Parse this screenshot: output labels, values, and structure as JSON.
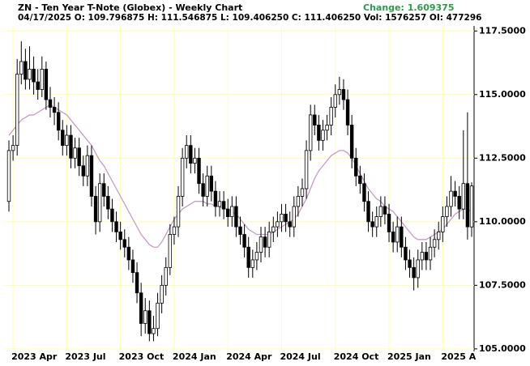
{
  "header": {
    "title": "ZN - Ten Year T-Note (Globex) - Weekly Chart",
    "change": "Change: 1.609375",
    "quote": "04/17/2025 O: 109.796875 H: 111.546875 L: 109.406250 C: 111.406250 Vol: 1576257 OI: 477296"
  },
  "chart_data": {
    "type": "candlestick",
    "categories": [
      null,
      "2023 Apr",
      null,
      null,
      null,
      null,
      null,
      null,
      null,
      null,
      null,
      null,
      null,
      null,
      "2023 Jul",
      null,
      null,
      null,
      null,
      null,
      null,
      null,
      null,
      null,
      null,
      null,
      null,
      "2023 Oct",
      null,
      null,
      null,
      null,
      null,
      null,
      null,
      null,
      null,
      null,
      null,
      null,
      "2024 Jan",
      null,
      null,
      null,
      null,
      null,
      null,
      null,
      null,
      null,
      null,
      null,
      null,
      "2024 Apr",
      null,
      null,
      null,
      null,
      null,
      null,
      null,
      null,
      null,
      null,
      null,
      null,
      "2024 Jul",
      null,
      null,
      null,
      null,
      null,
      null,
      null,
      null,
      null,
      null,
      null,
      null,
      "2024 Oct",
      null,
      null,
      null,
      null,
      null,
      null,
      null,
      null,
      null,
      null,
      null,
      null,
      "2025 Jan",
      null,
      null,
      null,
      null,
      null,
      null,
      null,
      null,
      null,
      null,
      null,
      null,
      "2025 A",
      null,
      null,
      null,
      null,
      null,
      null,
      null
    ],
    "open": [
      110.8,
      112.8,
      113.0,
      115.8,
      116.3,
      115.6,
      116.0,
      115.5,
      115.2,
      116.0,
      114.8,
      114.5,
      114.3,
      113.6,
      113.0,
      113.4,
      112.5,
      112.9,
      112.2,
      111.8,
      112.6,
      111.0,
      110.0,
      111.5,
      111.0,
      110.5,
      110.0,
      109.6,
      109.3,
      109.0,
      108.5,
      108.0,
      107.2,
      106.0,
      106.5,
      105.6,
      105.8,
      106.8,
      107.5,
      108.2,
      109.5,
      109.8,
      111.0,
      112.5,
      113.0,
      112.3,
      112.5,
      111.5,
      111.0,
      111.8,
      111.2,
      110.6,
      110.8,
      110.5,
      110.2,
      110.6,
      109.8,
      109.5,
      109.0,
      108.2,
      108.5,
      108.8,
      109.4,
      109.0,
      109.6,
      109.8,
      110.0,
      110.3,
      110.0,
      109.8,
      110.6,
      111.0,
      111.3,
      112.8,
      114.2,
      113.8,
      113.2,
      113.6,
      113.8,
      114.5,
      115.0,
      115.2,
      114.8,
      113.8,
      112.5,
      111.8,
      111.5,
      110.8,
      110.0,
      109.8,
      110.2,
      110.6,
      110.3,
      109.6,
      109.2,
      109.8,
      109.0,
      108.5,
      108.2,
      107.8,
      108.5,
      108.8,
      108.5,
      109.0,
      109.3,
      109.6,
      110.2,
      110.6,
      111.2,
      111.0,
      110.5,
      111.5,
      109.796875
    ],
    "high": [
      113.2,
      113.4,
      116.4,
      117.1,
      116.8,
      116.9,
      116.5,
      116.0,
      116.5,
      116.3,
      115.3,
      114.9,
      114.7,
      114.0,
      113.8,
      113.8,
      113.3,
      113.3,
      112.6,
      113.0,
      113.0,
      111.4,
      111.9,
      111.9,
      111.4,
      110.9,
      110.4,
      110.0,
      109.7,
      109.4,
      108.9,
      108.4,
      107.6,
      107.0,
      106.9,
      106.3,
      107.2,
      107.9,
      108.6,
      109.9,
      110.2,
      111.4,
      112.9,
      113.4,
      113.4,
      112.9,
      112.9,
      111.9,
      112.2,
      112.2,
      111.6,
      111.2,
      111.2,
      110.9,
      111.0,
      111.0,
      110.2,
      109.9,
      109.4,
      108.9,
      109.2,
      109.8,
      109.8,
      110.0,
      110.2,
      110.4,
      110.7,
      110.7,
      110.4,
      111.0,
      111.4,
      111.7,
      113.2,
      114.6,
      114.6,
      114.2,
      114.0,
      114.2,
      114.9,
      115.4,
      115.7,
      115.6,
      115.2,
      114.2,
      112.9,
      112.2,
      111.9,
      111.2,
      110.4,
      110.6,
      111.0,
      111.0,
      110.7,
      110.0,
      110.2,
      110.2,
      109.4,
      108.9,
      108.6,
      108.9,
      109.2,
      109.2,
      109.4,
      109.7,
      110.0,
      110.6,
      111.0,
      111.8,
      111.6,
      111.4,
      113.6,
      114.3,
      111.546875
    ],
    "low": [
      110.4,
      112.4,
      112.6,
      115.4,
      115.2,
      115.2,
      115.0,
      114.8,
      114.9,
      114.4,
      114.1,
      113.8,
      113.2,
      112.6,
      112.6,
      112.1,
      112.1,
      111.8,
      111.4,
      111.4,
      110.6,
      109.5,
      109.6,
      110.6,
      110.1,
      109.6,
      109.2,
      108.9,
      108.6,
      108.1,
      107.6,
      106.8,
      105.5,
      105.6,
      105.3,
      105.3,
      105.5,
      106.4,
      107.1,
      107.9,
      109.1,
      109.4,
      110.6,
      112.1,
      111.9,
      111.9,
      111.1,
      110.6,
      110.6,
      110.8,
      110.2,
      110.2,
      110.1,
      109.8,
      109.8,
      109.4,
      109.1,
      108.6,
      107.8,
      107.8,
      108.1,
      108.4,
      108.6,
      108.6,
      109.2,
      109.4,
      109.6,
      109.6,
      109.4,
      109.4,
      110.2,
      110.6,
      110.9,
      112.4,
      113.4,
      112.8,
      112.8,
      113.2,
      113.4,
      114.1,
      114.6,
      114.4,
      113.4,
      112.1,
      111.4,
      111.1,
      110.4,
      109.6,
      109.4,
      109.4,
      109.8,
      109.9,
      109.2,
      108.8,
      108.8,
      108.6,
      108.1,
      107.8,
      107.3,
      107.4,
      108.1,
      108.1,
      108.1,
      108.6,
      108.9,
      109.2,
      109.8,
      110.2,
      110.6,
      110.1,
      110.1,
      109.3,
      109.40625
    ],
    "close": [
      112.8,
      113.0,
      115.8,
      116.3,
      115.6,
      116.0,
      115.5,
      115.2,
      116.0,
      114.8,
      114.5,
      114.3,
      113.6,
      113.0,
      113.4,
      112.5,
      112.9,
      112.2,
      111.8,
      112.6,
      111.0,
      110.0,
      111.5,
      111.0,
      110.5,
      110.0,
      109.6,
      109.3,
      109.0,
      108.5,
      108.0,
      107.2,
      106.0,
      106.5,
      105.6,
      105.8,
      106.8,
      107.5,
      108.2,
      109.5,
      109.8,
      111.0,
      112.5,
      113.0,
      112.3,
      112.5,
      111.5,
      111.0,
      111.8,
      111.2,
      110.6,
      110.8,
      110.5,
      110.2,
      110.6,
      109.8,
      109.5,
      109.0,
      108.2,
      108.5,
      108.8,
      109.4,
      109.0,
      109.6,
      109.8,
      110.0,
      110.3,
      110.0,
      109.8,
      110.6,
      111.0,
      111.3,
      112.8,
      114.2,
      113.8,
      113.2,
      113.6,
      113.8,
      114.5,
      115.0,
      115.2,
      114.8,
      113.8,
      112.5,
      111.8,
      111.5,
      110.8,
      110.0,
      109.8,
      110.2,
      110.6,
      110.3,
      109.6,
      109.2,
      109.8,
      109.0,
      108.5,
      108.2,
      107.8,
      108.5,
      108.8,
      108.5,
      109.0,
      109.3,
      109.6,
      110.2,
      110.6,
      111.2,
      111.0,
      110.5,
      111.5,
      109.8,
      111.40625
    ],
    "up_color": "#ffffff",
    "down_color": "#000000",
    "overlay": {
      "color": "#c89cc8",
      "values": [
        113.4,
        113.6,
        113.8,
        114.0,
        114.1,
        114.2,
        114.2,
        114.3,
        114.4,
        114.5,
        114.6,
        114.5,
        114.4,
        114.3,
        114.2,
        114.0,
        113.8,
        113.6,
        113.4,
        113.2,
        113.0,
        112.7,
        112.4,
        112.2,
        111.9,
        111.6,
        111.3,
        111.0,
        110.7,
        110.4,
        110.1,
        109.8,
        109.5,
        109.3,
        109.1,
        109.0,
        109.0,
        109.2,
        109.5,
        109.8,
        110.1,
        110.3,
        110.5,
        110.6,
        110.7,
        110.8,
        110.8,
        110.8,
        110.7,
        110.7,
        110.6,
        110.6,
        110.5,
        110.5,
        110.4,
        110.3,
        110.1,
        109.9,
        109.7,
        109.6,
        109.5,
        109.5,
        109.5,
        109.5,
        109.6,
        109.7,
        109.8,
        109.9,
        110.0,
        110.1,
        110.3,
        110.6,
        110.9,
        111.3,
        111.7,
        112.0,
        112.2,
        112.4,
        112.6,
        112.7,
        112.8,
        112.8,
        112.7,
        112.5,
        112.2,
        111.9,
        111.6,
        111.3,
        111.1,
        110.9,
        110.8,
        110.6,
        110.5,
        110.4,
        110.2,
        110.0,
        109.8,
        109.6,
        109.4,
        109.3,
        109.3,
        109.3,
        109.4,
        109.5,
        109.6,
        109.7,
        109.9,
        110.1,
        110.3,
        110.4,
        110.5,
        110.5,
        110.4
      ]
    },
    "ylim": [
      104.9,
      117.7
    ],
    "yticks": [
      {
        "value": 105,
        "label": "105.0000"
      },
      {
        "value": 107.5,
        "label": "107.5000"
      },
      {
        "value": 110,
        "label": "110.0000"
      },
      {
        "value": 112.5,
        "label": "112.5000"
      },
      {
        "value": 115,
        "label": "115.0000"
      },
      {
        "value": 117.5,
        "label": "117.5000"
      }
    ],
    "grid": true,
    "grid_color": "#ffffb0"
  }
}
